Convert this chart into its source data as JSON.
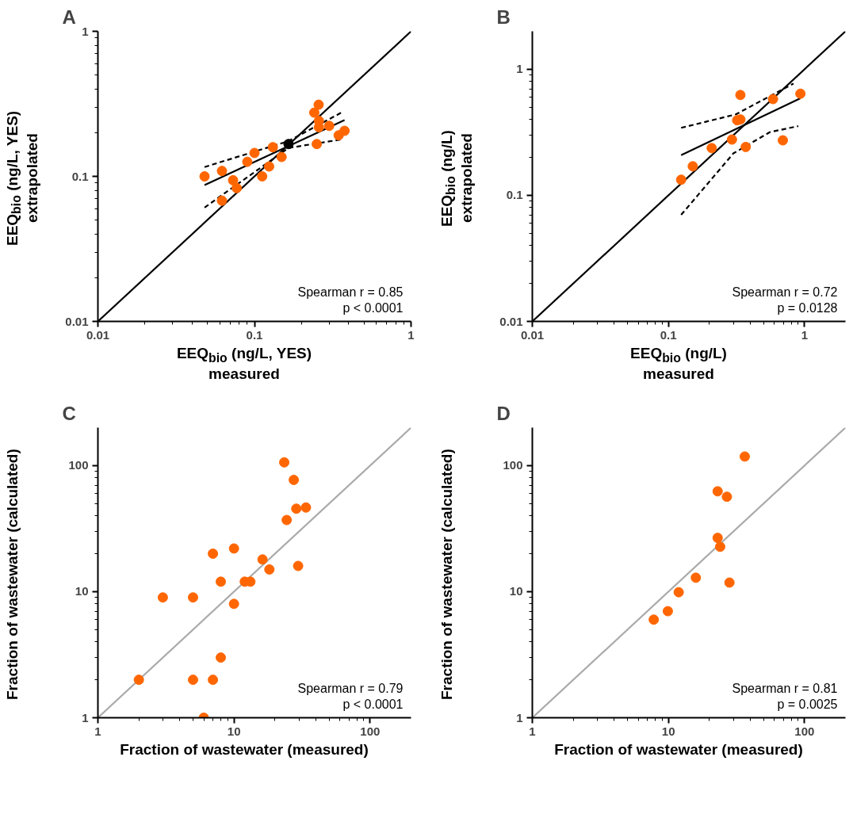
{
  "chart_data": [
    {
      "type": "scatter",
      "title": "A",
      "xlabel": "EEQ$_{bio}$ (ng/L, YES)\nmeasured",
      "ylabel": "EEQ$_{bio}$ (ng/L, YES)\nextrapolated",
      "log": "xy",
      "xlim": [
        0.01,
        1
      ],
      "ylim": [
        0.01,
        1
      ],
      "xticks": [
        0.01,
        0.1,
        1
      ],
      "yticks": [
        0.01,
        0.1,
        1
      ],
      "marker": "circle",
      "annotations": [
        "Spearman r = 0.85\np < 0.0001"
      ],
      "series": [
        {
          "type": "line",
          "color": "#000000",
          "line_style": "solid",
          "marker": "none",
          "x": [
            0.01,
            1
          ],
          "values": [
            0.01,
            1
          ]
        },
        {
          "type": "line",
          "color": "#000000",
          "line_style": "solid",
          "marker": "none",
          "x": [
            0.048,
            0.376
          ],
          "values": [
            0.087,
            0.244
          ]
        },
        {
          "type": "line",
          "color": "#000000",
          "line_style": "dashed",
          "marker": "none",
          "x": [
            0.048,
            0.165,
            0.363
          ],
          "values": [
            0.116,
            0.175,
            0.277
          ]
        },
        {
          "type": "line",
          "color": "#000000",
          "line_style": "dashed",
          "marker": "none",
          "x": [
            0.048,
            0.165,
            0.363
          ],
          "values": [
            0.061,
            0.157,
            0.18
          ]
        },
        {
          "color": "#ff6600",
          "x": [
            0.048,
            0.062,
            0.073,
            0.077,
            0.062,
            0.09,
            0.1,
            0.131,
            0.149,
            0.124,
            0.112,
            0.241,
            0.257,
            0.258,
            0.258,
            0.3,
            0.25,
            0.345,
            0.376
          ],
          "values": [
            0.1,
            0.109,
            0.094,
            0.083,
            0.068,
            0.126,
            0.145,
            0.159,
            0.136,
            0.117,
            0.1,
            0.275,
            0.312,
            0.241,
            0.218,
            0.223,
            0.167,
            0.192,
            0.206
          ]
        },
        {
          "color": "#000000",
          "x": [
            0.165
          ],
          "values": [
            0.167
          ]
        }
      ]
    },
    {
      "type": "scatter",
      "title": "B",
      "xlabel": "EEQ$_{bio}$ (ng/L)\nmeasured",
      "ylabel": "EEQ$_{bio}$ (ng/L)\nextrapolated",
      "log": "xy",
      "xlim": [
        0.01,
        2
      ],
      "ylim": [
        0.01,
        2
      ],
      "xticks": [
        0.01,
        0.1,
        1
      ],
      "yticks": [
        0.01,
        0.1,
        1
      ],
      "marker": "circle",
      "annotations": [
        "Spearman r = 0.72\np = 0.0128"
      ],
      "series": [
        {
          "type": "line",
          "color": "#000000",
          "line_style": "solid",
          "marker": "none",
          "x": [
            0.01,
            2
          ],
          "values": [
            0.01,
            2
          ]
        },
        {
          "type": "line",
          "color": "#000000",
          "line_style": "solid",
          "marker": "none",
          "x": [
            0.124,
            0.933
          ],
          "values": [
            0.208,
            0.589
          ]
        },
        {
          "type": "line",
          "color": "#000000",
          "line_style": "dashed",
          "marker": "none",
          "x": [
            0.124,
            0.313,
            0.83
          ],
          "values": [
            0.343,
            0.439,
            0.77
          ]
        },
        {
          "type": "line",
          "color": "#000000",
          "line_style": "dashed",
          "marker": "none",
          "x": [
            0.124,
            0.3,
            0.556,
            0.9
          ],
          "values": [
            0.07,
            0.215,
            0.317,
            0.354
          ]
        },
        {
          "color": "#ff6600",
          "x": [
            0.338,
            0.587,
            0.933,
            0.32,
            0.338,
            0.293,
            0.208,
            0.37,
            0.693,
            0.151,
            0.124
          ],
          "values": [
            0.625,
            0.58,
            0.64,
            0.394,
            0.4,
            0.277,
            0.237,
            0.242,
            0.273,
            0.17,
            0.133
          ]
        }
      ]
    },
    {
      "type": "scatter",
      "title": "C",
      "xlabel": "Fraction of wastewater (measured)",
      "ylabel": "Fraction of wastewater (calculated)",
      "log": "xy",
      "xlim": [
        1,
        200
      ],
      "ylim": [
        1,
        200
      ],
      "xticks": [
        1,
        10,
        100
      ],
      "yticks": [
        1,
        10,
        100
      ],
      "marker": "circle",
      "annotations": [
        "Spearman r = 0.79\np < 0.0001"
      ],
      "series": [
        {
          "type": "line",
          "color": "#aaaaaa",
          "line_style": "solid",
          "marker": "none",
          "x": [
            1,
            200
          ],
          "values": [
            1,
            200
          ]
        },
        {
          "color": "#ff6600",
          "x": [
            23.4,
            27.5,
            28.7,
            33.8,
            24.4,
            7,
            10,
            16.2,
            18.2,
            29.6,
            8,
            12,
            13.2,
            3,
            5,
            10,
            8,
            2,
            5,
            7,
            6
          ],
          "values": [
            106,
            77,
            45.5,
            46.5,
            37,
            20,
            22,
            18,
            15,
            16,
            12,
            12,
            12,
            9,
            9,
            8,
            3,
            2,
            2,
            2,
            1
          ]
        }
      ]
    },
    {
      "type": "scatter",
      "title": "D",
      "xlabel": "Fraction of wastewater (measured)",
      "ylabel": "Fraction of wastewater (calculated)",
      "log": "xy",
      "xlim": [
        1,
        200
      ],
      "ylim": [
        1,
        200
      ],
      "xticks": [
        1,
        10,
        100
      ],
      "yticks": [
        1,
        10,
        100
      ],
      "marker": "circle",
      "annotations": [
        "Spearman r = 0.81\np = 0.0025"
      ],
      "series": [
        {
          "type": "line",
          "color": "#aaaaaa",
          "line_style": "solid",
          "marker": "none",
          "x": [
            1,
            200
          ],
          "values": [
            1,
            200
          ]
        },
        {
          "color": "#ff6600",
          "x": [
            36.4,
            23,
            26.9,
            23,
            24,
            15.9,
            28.1,
            11.9,
            9.9,
            7.8
          ],
          "values": [
            118,
            62.5,
            56.6,
            26.7,
            22.7,
            12.9,
            11.8,
            9.9,
            7,
            6
          ]
        }
      ]
    }
  ]
}
